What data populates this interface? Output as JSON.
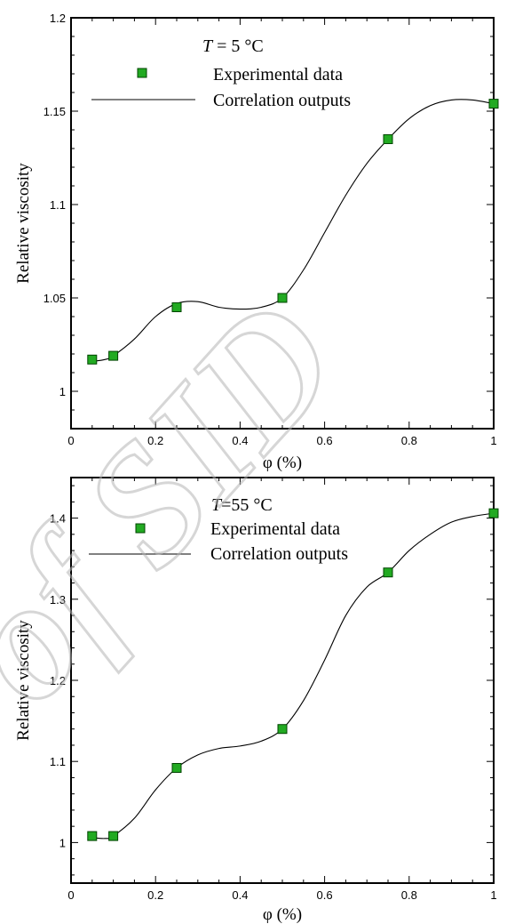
{
  "watermark": "of SID",
  "marker_color": "#22aa22",
  "marker_edge": "#004400",
  "line_color": "#000000",
  "chart_data": [
    {
      "type": "scatter",
      "title_T": "T",
      "title_rest": " = 5 °C",
      "xlabel": "φ (%)",
      "ylabel": "Relative viscosity",
      "xlim": [
        0,
        1
      ],
      "ylim": [
        0.98,
        1.2
      ],
      "xticks": [
        "0",
        "0.2",
        "0.4",
        "0.6",
        "0.8",
        "1"
      ],
      "xtick_values": [
        0,
        0.2,
        0.4,
        0.6,
        0.8,
        1
      ],
      "yticks": [
        "1",
        "1.05",
        "1.1",
        "1.15",
        "1.2"
      ],
      "ytick_values": [
        1,
        1.05,
        1.1,
        1.15,
        1.2
      ],
      "legend_placement": "top",
      "series": [
        {
          "name": "Experimental data",
          "kind": "markers",
          "x": [
            0.05,
            0.1,
            0.25,
            0.5,
            0.75,
            1.0
          ],
          "y": [
            1.017,
            1.019,
            1.045,
            1.05,
            1.135,
            1.154
          ]
        },
        {
          "name": "Correlation outputs",
          "kind": "line",
          "x": [
            0.05,
            0.08,
            0.1,
            0.15,
            0.2,
            0.25,
            0.3,
            0.35,
            0.4,
            0.45,
            0.5,
            0.55,
            0.6,
            0.65,
            0.7,
            0.75,
            0.8,
            0.85,
            0.9,
            0.95,
            1.0
          ],
          "y": [
            1.016,
            1.017,
            1.019,
            1.028,
            1.04,
            1.047,
            1.048,
            1.045,
            1.044,
            1.045,
            1.05,
            1.065,
            1.085,
            1.105,
            1.122,
            1.135,
            1.146,
            1.153,
            1.156,
            1.156,
            1.154
          ]
        }
      ]
    },
    {
      "type": "scatter",
      "title_T": "T",
      "title_rest": "=55 °C",
      "xlabel": "φ (%)",
      "ylabel": "Relative viscosity",
      "xlim": [
        0,
        1
      ],
      "ylim": [
        0.95,
        1.45
      ],
      "xticks": [
        "0",
        "0.2",
        "0.4",
        "0.6",
        "0.8",
        "1"
      ],
      "xtick_values": [
        0,
        0.2,
        0.4,
        0.6,
        0.8,
        1
      ],
      "yticks": [
        "1",
        "1.1",
        "1.2",
        "1.3",
        "1.4"
      ],
      "ytick_values": [
        1,
        1.1,
        1.2,
        1.3,
        1.4
      ],
      "legend_placement": "top",
      "series": [
        {
          "name": "Experimental data",
          "kind": "markers",
          "x": [
            0.05,
            0.1,
            0.25,
            0.5,
            0.75,
            1.0
          ],
          "y": [
            1.008,
            1.008,
            1.092,
            1.14,
            1.333,
            1.406
          ]
        },
        {
          "name": "Correlation outputs",
          "kind": "line",
          "x": [
            0.05,
            0.08,
            0.1,
            0.15,
            0.2,
            0.25,
            0.3,
            0.35,
            0.4,
            0.45,
            0.5,
            0.55,
            0.6,
            0.65,
            0.7,
            0.75,
            0.8,
            0.85,
            0.9,
            0.95,
            1.0
          ],
          "y": [
            1.006,
            1.005,
            1.008,
            1.03,
            1.065,
            1.092,
            1.108,
            1.116,
            1.119,
            1.125,
            1.14,
            1.175,
            1.225,
            1.28,
            1.315,
            1.333,
            1.36,
            1.38,
            1.395,
            1.402,
            1.406
          ]
        }
      ]
    }
  ]
}
